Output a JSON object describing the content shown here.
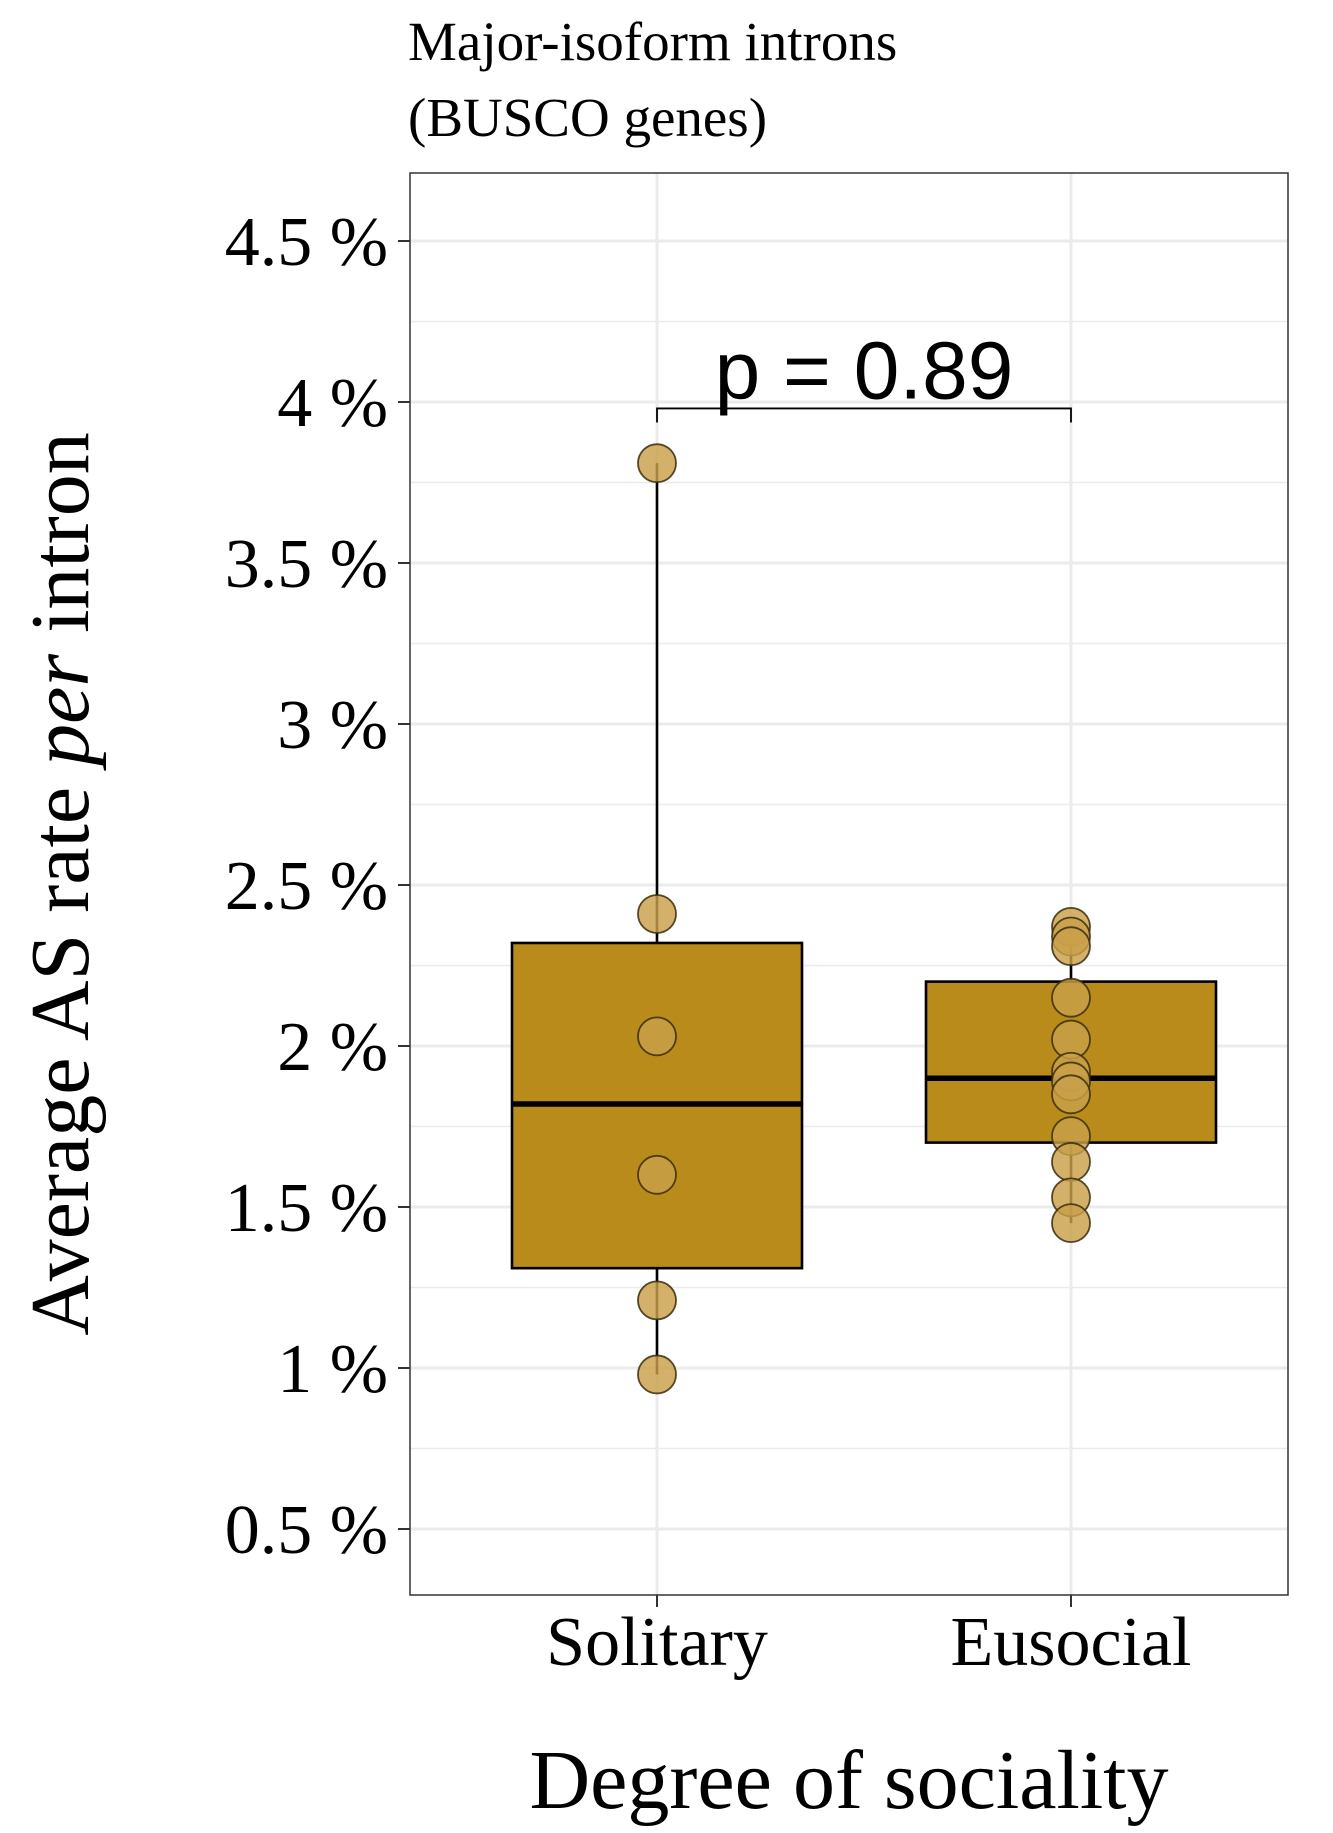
{
  "chart_data": {
    "type": "box",
    "title_line1": "Major-isoform introns",
    "title_line2": "(BUSCO genes)",
    "xlabel": "Degree of sociality",
    "ylabel_pre": "Average AS rate ",
    "ylabel_italic": "per",
    "ylabel_post": " intron",
    "categories": [
      "Solitary",
      "Eusocial"
    ],
    "ylim": [
      0.3,
      4.7
    ],
    "yticks": [
      0.5,
      1,
      1.5,
      2,
      2.5,
      3,
      3.5,
      4,
      4.5
    ],
    "ytick_labels": [
      "0.5 %",
      "1 %",
      "1.5 %",
      "2 %",
      "2.5 %",
      "3 %",
      "3.5 %",
      "4 %",
      "4.5 %"
    ],
    "grid": true,
    "boxes": [
      {
        "category": "Solitary",
        "whisker_low": 0.98,
        "q1": 1.31,
        "median": 1.82,
        "q3": 2.32,
        "whisker_high": 3.81
      },
      {
        "category": "Eusocial",
        "whisker_low": 1.45,
        "q1": 1.7,
        "median": 1.9,
        "q3": 2.2,
        "whisker_high": 2.37
      }
    ],
    "points": [
      {
        "category": "Solitary",
        "values": [
          3.81,
          2.41,
          2.03,
          1.6,
          1.21,
          0.98
        ]
      },
      {
        "category": "Eusocial",
        "values": [
          2.37,
          2.34,
          2.31,
          2.15,
          2.02,
          1.92,
          1.89,
          1.85,
          1.72,
          1.64,
          1.53,
          1.45
        ]
      }
    ],
    "annotation": {
      "text": "p = 0.89",
      "y": 3.98
    },
    "colors": {
      "box_fill": "#B88B1B",
      "point_fill": "#C9A04A",
      "grid": "#EBEBEB",
      "frame": "#333333"
    }
  }
}
